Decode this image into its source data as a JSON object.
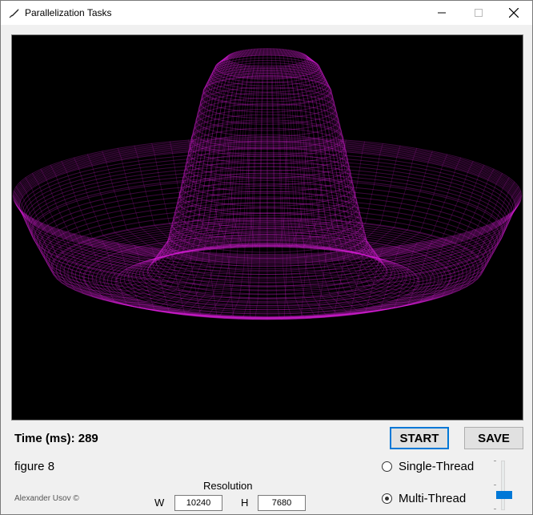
{
  "window": {
    "title": "Parallelization Tasks",
    "controls": {
      "minimize": "—",
      "maximize": "☐",
      "close": "✕"
    }
  },
  "render": {
    "background": "#000000",
    "color": "#e020e0"
  },
  "status": {
    "time_label": "Time (ms): 289",
    "figure_label": "figure 8"
  },
  "footer": {
    "author": "Alexander Usov ©"
  },
  "resolution": {
    "label": "Resolution",
    "w_label": "W",
    "w_value": "10240",
    "h_label": "H",
    "h_value": "7680"
  },
  "buttons": {
    "start": "START",
    "save": "SAVE"
  },
  "mode": {
    "options": [
      {
        "label": "Single-Thread",
        "checked": false
      },
      {
        "label": "Multi-Thread",
        "checked": true
      }
    ]
  },
  "icons": {
    "app": "feather-icon"
  }
}
